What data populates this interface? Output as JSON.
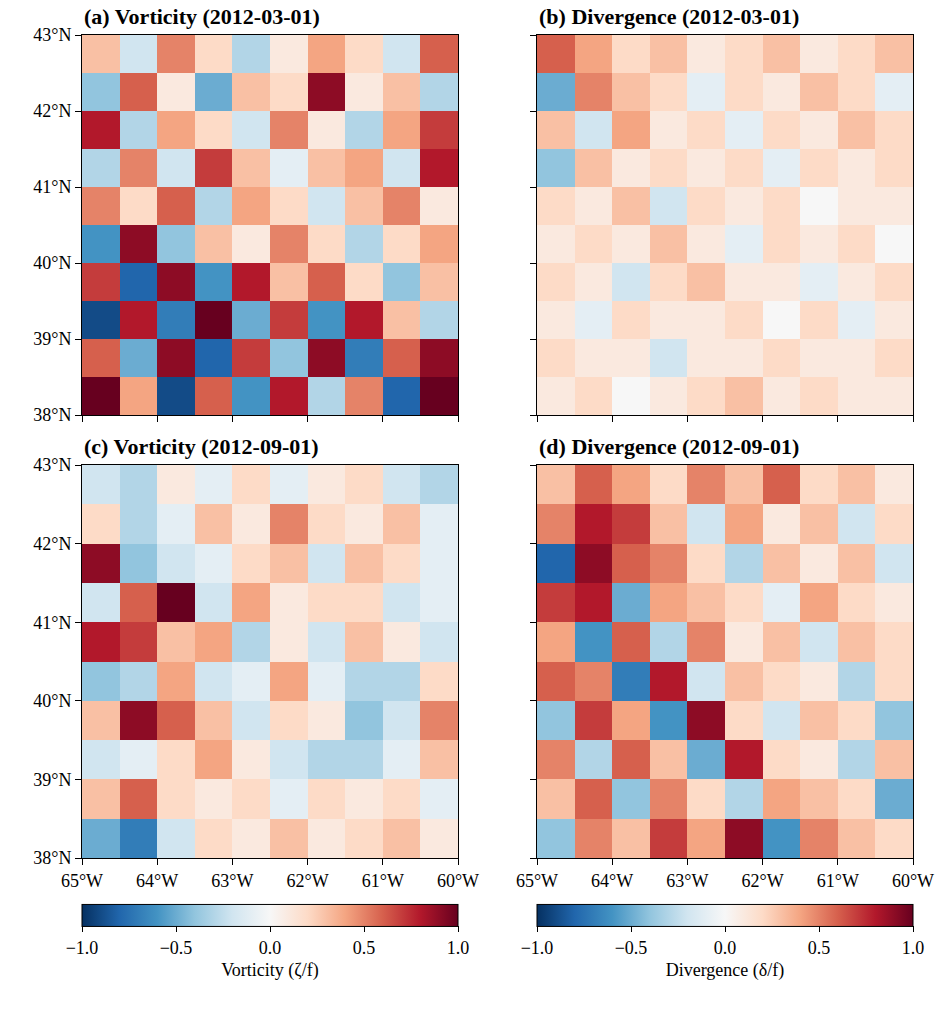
{
  "chart_data": [
    {
      "type": "heatmap",
      "title": "(a) Vorticity (2012-03-01)",
      "tick_labels": "y",
      "x": [
        -64.75,
        -64.25,
        -63.75,
        -63.25,
        -62.75,
        -62.25,
        -61.75,
        -61.25,
        -60.75,
        -60.25
      ],
      "y": [
        42.75,
        42.25,
        41.75,
        41.25,
        40.75,
        40.25,
        39.75,
        39.25,
        38.75,
        38.25
      ],
      "z": [
        [
          0.3,
          -0.2,
          0.5,
          0.2,
          -0.3,
          0.1,
          0.4,
          0.2,
          -0.2,
          0.6
        ],
        [
          -0.4,
          0.6,
          0.1,
          -0.5,
          0.3,
          0.2,
          0.9,
          0.1,
          0.3,
          -0.3
        ],
        [
          0.8,
          -0.3,
          0.4,
          0.2,
          -0.2,
          0.5,
          0.1,
          -0.3,
          0.4,
          0.7
        ],
        [
          -0.3,
          0.5,
          -0.2,
          0.7,
          0.3,
          -0.1,
          0.3,
          0.4,
          -0.2,
          0.8
        ],
        [
          0.5,
          0.2,
          0.6,
          -0.3,
          0.4,
          0.2,
          -0.2,
          0.3,
          0.5,
          0.1
        ],
        [
          -0.6,
          0.9,
          -0.4,
          0.3,
          0.1,
          0.5,
          0.2,
          -0.3,
          0.2,
          0.4
        ],
        [
          0.7,
          -0.8,
          0.9,
          -0.6,
          0.8,
          0.3,
          0.6,
          0.2,
          -0.4,
          0.3
        ],
        [
          -0.9,
          0.8,
          -0.7,
          1.0,
          -0.5,
          0.7,
          -0.6,
          0.8,
          0.3,
          -0.3
        ],
        [
          0.6,
          -0.5,
          0.9,
          -0.8,
          0.7,
          -0.4,
          0.9,
          -0.7,
          0.6,
          0.9
        ],
        [
          1.0,
          0.4,
          -0.9,
          0.6,
          -0.6,
          0.8,
          -0.3,
          0.5,
          -0.8,
          1.0
        ]
      ],
      "xlim": [
        -65,
        -60
      ],
      "ylim": [
        38,
        43
      ],
      "xticks": [
        {
          "value": -65,
          "label": "65°W"
        },
        {
          "value": -64,
          "label": "64°W"
        },
        {
          "value": -63,
          "label": "63°W"
        },
        {
          "value": -62,
          "label": "62°W"
        },
        {
          "value": -61,
          "label": "61°W"
        },
        {
          "value": -60,
          "label": "60°W"
        }
      ],
      "yticks": [
        {
          "value": 38,
          "label": "38°N"
        },
        {
          "value": 39,
          "label": "39°N"
        },
        {
          "value": 40,
          "label": "40°N"
        },
        {
          "value": 41,
          "label": "41°N"
        },
        {
          "value": 42,
          "label": "42°N"
        },
        {
          "value": 43,
          "label": "43°N"
        }
      ]
    },
    {
      "type": "heatmap",
      "title": "(b) Divergence (2012-03-01)",
      "tick_labels": false,
      "x": [
        -64.75,
        -64.25,
        -63.75,
        -63.25,
        -62.75,
        -62.25,
        -61.75,
        -61.25,
        -60.75,
        -60.25
      ],
      "y": [
        42.75,
        42.25,
        41.75,
        41.25,
        40.75,
        40.25,
        39.75,
        39.25,
        38.75,
        38.25
      ],
      "z": [
        [
          0.6,
          0.4,
          0.2,
          0.3,
          0.1,
          0.2,
          0.3,
          0.1,
          0.2,
          0.3
        ],
        [
          -0.5,
          0.5,
          0.3,
          0.2,
          -0.1,
          0.2,
          0.1,
          0.3,
          0.2,
          -0.1
        ],
        [
          0.3,
          -0.2,
          0.4,
          0.1,
          0.2,
          -0.1,
          0.2,
          0.1,
          0.3,
          0.2
        ],
        [
          -0.4,
          0.3,
          0.1,
          0.2,
          0.1,
          0.2,
          -0.1,
          0.2,
          0.1,
          0.2
        ],
        [
          0.2,
          0.1,
          0.3,
          -0.2,
          0.2,
          0.1,
          0.2,
          0.0,
          0.1,
          0.1
        ],
        [
          0.1,
          0.2,
          0.1,
          0.3,
          0.1,
          -0.1,
          0.2,
          0.1,
          0.2,
          0.0
        ],
        [
          0.2,
          0.1,
          -0.2,
          0.2,
          0.3,
          0.1,
          0.1,
          -0.1,
          0.1,
          0.2
        ],
        [
          0.1,
          -0.1,
          0.2,
          0.1,
          0.1,
          0.2,
          0.0,
          0.2,
          -0.1,
          0.1
        ],
        [
          0.2,
          0.1,
          0.1,
          -0.2,
          0.1,
          0.1,
          0.2,
          0.1,
          0.1,
          0.2
        ],
        [
          0.1,
          0.2,
          0.0,
          0.1,
          0.2,
          0.3,
          0.1,
          0.2,
          0.1,
          0.1
        ]
      ],
      "xlim": [
        -65,
        -60
      ],
      "ylim": [
        38,
        43
      ],
      "xticks": [
        {
          "value": -65,
          "label": "65°W"
        },
        {
          "value": -64,
          "label": "64°W"
        },
        {
          "value": -63,
          "label": "63°W"
        },
        {
          "value": -62,
          "label": "62°W"
        },
        {
          "value": -61,
          "label": "61°W"
        },
        {
          "value": -60,
          "label": "60°W"
        }
      ],
      "yticks": [
        {
          "value": 38,
          "label": "38°N"
        },
        {
          "value": 39,
          "label": "39°N"
        },
        {
          "value": 40,
          "label": "40°N"
        },
        {
          "value": 41,
          "label": "41°N"
        },
        {
          "value": 42,
          "label": "42°N"
        },
        {
          "value": 43,
          "label": "43°N"
        }
      ]
    },
    {
      "type": "heatmap",
      "title": "(c) Vorticity (2012-09-01)",
      "x": [
        -64.75,
        -64.25,
        -63.75,
        -63.25,
        -62.75,
        -62.25,
        -61.75,
        -61.25,
        -60.75,
        -60.25
      ],
      "y": [
        42.75,
        42.25,
        41.75,
        41.25,
        40.75,
        40.25,
        39.75,
        39.25,
        38.75,
        38.25
      ],
      "z": [
        [
          -0.2,
          -0.3,
          0.1,
          -0.1,
          0.2,
          -0.1,
          0.1,
          0.2,
          -0.2,
          -0.3
        ],
        [
          0.2,
          -0.3,
          -0.1,
          0.3,
          0.1,
          0.5,
          0.2,
          0.1,
          0.3,
          -0.1
        ],
        [
          0.9,
          -0.4,
          -0.2,
          -0.1,
          0.2,
          0.3,
          -0.2,
          0.3,
          0.2,
          -0.1
        ],
        [
          -0.2,
          0.6,
          1.0,
          -0.2,
          0.4,
          0.1,
          0.2,
          0.2,
          -0.2,
          -0.1
        ],
        [
          0.8,
          0.7,
          0.3,
          0.4,
          -0.3,
          0.1,
          -0.2,
          0.3,
          0.1,
          -0.2
        ],
        [
          -0.4,
          -0.3,
          0.4,
          -0.2,
          -0.1,
          0.4,
          -0.1,
          -0.3,
          -0.3,
          0.2
        ],
        [
          0.3,
          0.9,
          0.6,
          0.3,
          -0.2,
          0.2,
          0.1,
          -0.4,
          -0.2,
          0.5
        ],
        [
          -0.2,
          -0.1,
          0.2,
          0.4,
          0.1,
          -0.2,
          -0.3,
          -0.3,
          -0.1,
          0.3
        ],
        [
          0.3,
          0.6,
          0.2,
          0.1,
          0.2,
          -0.1,
          0.2,
          0.1,
          0.2,
          -0.1
        ],
        [
          -0.5,
          -0.7,
          -0.2,
          0.2,
          0.1,
          0.3,
          0.1,
          0.2,
          0.3,
          0.1
        ]
      ],
      "xlim": [
        -65,
        -60
      ],
      "ylim": [
        38,
        43
      ],
      "xticks": [
        {
          "value": -65,
          "label": "65°W"
        },
        {
          "value": -64,
          "label": "64°W"
        },
        {
          "value": -63,
          "label": "63°W"
        },
        {
          "value": -62,
          "label": "62°W"
        },
        {
          "value": -61,
          "label": "61°W"
        },
        {
          "value": -60,
          "label": "60°W"
        }
      ],
      "yticks": [
        {
          "value": 38,
          "label": "38°N"
        },
        {
          "value": 39,
          "label": "39°N"
        },
        {
          "value": 40,
          "label": "40°N"
        },
        {
          "value": 41,
          "label": "41°N"
        },
        {
          "value": 42,
          "label": "42°N"
        },
        {
          "value": 43,
          "label": "43°N"
        }
      ],
      "colorbar": {
        "label": "Vorticity (ζ/f)",
        "range": [
          -1,
          1
        ],
        "ticks": [
          {
            "value": -1,
            "label": "−1.0"
          },
          {
            "value": -0.5,
            "label": "−0.5"
          },
          {
            "value": 0,
            "label": "0.0"
          },
          {
            "value": 0.5,
            "label": "0.5"
          },
          {
            "value": 1,
            "label": "1.0"
          }
        ]
      }
    },
    {
      "type": "heatmap",
      "title": "(d) Divergence (2012-09-01)",
      "tick_labels": "x",
      "x": [
        -64.75,
        -64.25,
        -63.75,
        -63.25,
        -62.75,
        -62.25,
        -61.75,
        -61.25,
        -60.75,
        -60.25
      ],
      "y": [
        42.75,
        42.25,
        41.75,
        41.25,
        40.75,
        40.25,
        39.75,
        39.25,
        38.75,
        38.25
      ],
      "z": [
        [
          0.3,
          0.6,
          0.4,
          0.2,
          0.5,
          0.3,
          0.6,
          0.2,
          0.3,
          0.1
        ],
        [
          0.5,
          0.8,
          0.7,
          0.3,
          -0.2,
          0.4,
          0.1,
          0.3,
          -0.2,
          0.2
        ],
        [
          -0.8,
          0.9,
          0.6,
          0.5,
          0.2,
          -0.3,
          0.3,
          0.1,
          0.3,
          -0.2
        ],
        [
          0.7,
          0.8,
          -0.5,
          0.4,
          0.3,
          0.2,
          -0.1,
          0.4,
          0.2,
          0.1
        ],
        [
          0.4,
          -0.6,
          0.6,
          -0.3,
          0.5,
          0.1,
          0.3,
          -0.2,
          0.3,
          0.2
        ],
        [
          0.6,
          0.5,
          -0.7,
          0.8,
          -0.2,
          0.3,
          0.2,
          0.1,
          -0.3,
          0.2
        ],
        [
          -0.4,
          0.7,
          0.4,
          -0.6,
          0.9,
          0.2,
          -0.2,
          0.3,
          0.2,
          -0.4
        ],
        [
          0.5,
          -0.3,
          0.6,
          0.3,
          -0.5,
          0.8,
          0.2,
          0.1,
          -0.3,
          0.3
        ],
        [
          0.3,
          0.6,
          -0.4,
          0.5,
          0.2,
          -0.3,
          0.4,
          0.3,
          0.2,
          -0.5
        ],
        [
          -0.4,
          0.5,
          0.3,
          0.7,
          0.4,
          0.9,
          -0.6,
          0.5,
          0.3,
          0.2
        ]
      ],
      "xlim": [
        -65,
        -60
      ],
      "ylim": [
        38,
        43
      ],
      "xticks": [
        {
          "value": -65,
          "label": "65°W"
        },
        {
          "value": -64,
          "label": "64°W"
        },
        {
          "value": -63,
          "label": "63°W"
        },
        {
          "value": -62,
          "label": "62°W"
        },
        {
          "value": -61,
          "label": "61°W"
        },
        {
          "value": -60,
          "label": "60°W"
        }
      ],
      "yticks": [
        {
          "value": 38,
          "label": "38°N"
        },
        {
          "value": 39,
          "label": "39°N"
        },
        {
          "value": 40,
          "label": "40°N"
        },
        {
          "value": 41,
          "label": "41°N"
        },
        {
          "value": 42,
          "label": "42°N"
        },
        {
          "value": 43,
          "label": "43°N"
        }
      ],
      "colorbar": {
        "label": "Divergence (δ/f)",
        "range": [
          -1,
          1
        ],
        "ticks": [
          {
            "value": -1,
            "label": "−1.0"
          },
          {
            "value": -0.5,
            "label": "−0.5"
          },
          {
            "value": 0,
            "label": "0.0"
          },
          {
            "value": 0.5,
            "label": "0.5"
          },
          {
            "value": 1,
            "label": "1.0"
          }
        ]
      }
    }
  ]
}
